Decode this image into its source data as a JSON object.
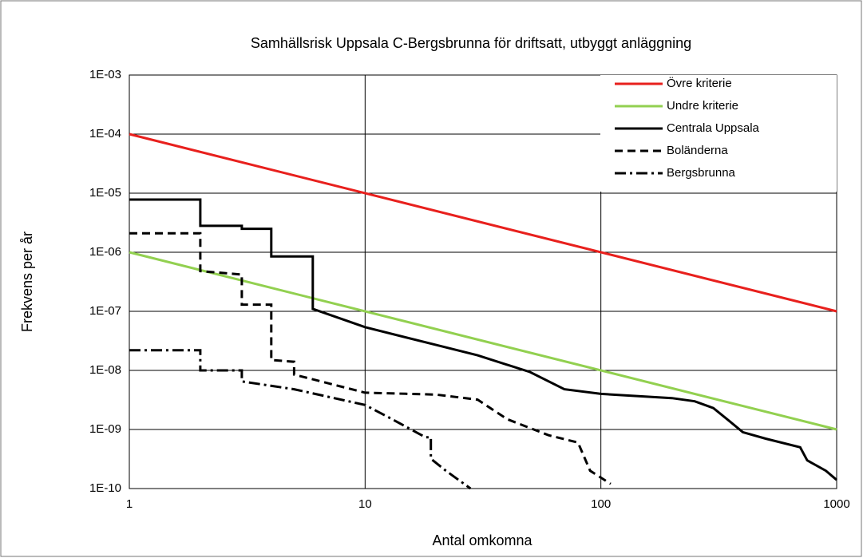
{
  "chart_data": {
    "type": "line",
    "title": "Samhällsrisk Uppsala C-Bergsbrunna för driftsatt, utbyggt anläggning",
    "x_label": "Antal omkomna",
    "y_label": "Frekvens per år",
    "xlog": true,
    "ylog": true,
    "grid": true,
    "legend": "upper right",
    "xlim": [
      1,
      1000
    ],
    "xticks": [
      1,
      10,
      100,
      1000
    ],
    "ylim": [
      1e-10,
      0.001
    ],
    "yticks": [
      {
        "value": 1e-10,
        "label": "1E-10"
      },
      {
        "value": 1e-09,
        "label": "1E-09"
      },
      {
        "value": 1e-08,
        "label": "1E-08"
      },
      {
        "value": 1e-07,
        "label": "1E-07"
      },
      {
        "value": 1e-06,
        "label": "1E-06"
      },
      {
        "value": 1e-05,
        "label": "1E-05"
      },
      {
        "value": 0.0001,
        "label": "1E-04"
      },
      {
        "value": 0.001,
        "label": "1E-03"
      }
    ],
    "series": [
      {
        "name": "Övre kriterie",
        "color": "#e8201d",
        "dash": "solid",
        "x": [
          1,
          1000
        ],
        "values": [
          0.0001,
          1e-07
        ]
      },
      {
        "name": "Undre kriterie",
        "color": "#92d050",
        "dash": "solid",
        "x": [
          1,
          1000
        ],
        "values": [
          1e-06,
          1e-09
        ]
      },
      {
        "name": "Centrala Uppsala",
        "color": "#000000",
        "dash": "solid",
        "x": [
          1,
          2,
          2,
          3,
          3,
          4,
          4,
          6,
          6,
          10,
          20,
          30,
          50,
          70,
          100,
          200,
          250,
          300,
          350,
          400,
          500,
          700,
          750,
          900,
          1000
        ],
        "values": [
          7.8e-06,
          7.8e-06,
          2.8e-06,
          2.8e-06,
          2.5e-06,
          2.5e-06,
          8.5e-07,
          8.5e-07,
          1.1e-07,
          5.4e-08,
          2.7e-08,
          1.8e-08,
          9.4e-09,
          4.8e-09,
          4e-09,
          3.4e-09,
          3e-09,
          2.3e-09,
          1.4e-09,
          9e-10,
          7e-10,
          5e-10,
          3e-10,
          2e-10,
          1.4e-10
        ]
      },
      {
        "name": "Boländerna",
        "color": "#000000",
        "dash": "dashed",
        "x": [
          1,
          2,
          2,
          3,
          3,
          4,
          4,
          5,
          5,
          10,
          20,
          30,
          40,
          60,
          80,
          90,
          110
        ],
        "values": [
          2.1e-06,
          2.1e-06,
          4.8e-07,
          4.2e-07,
          1.3e-07,
          1.3e-07,
          1.5e-08,
          1.4e-08,
          8.5e-09,
          4.2e-09,
          3.9e-09,
          3.2e-09,
          1.5e-09,
          8e-10,
          6e-10,
          2e-10,
          1.2e-10
        ]
      },
      {
        "name": "Bergsbrunna",
        "color": "#000000",
        "dash": "dashdot",
        "x": [
          1,
          2,
          2,
          3,
          3,
          5,
          10,
          13,
          18,
          19,
          19,
          22,
          28
        ],
        "values": [
          2.2e-08,
          2.2e-08,
          1e-08,
          1e-08,
          6.5e-09,
          4.8e-09,
          2.6e-09,
          1.5e-09,
          7.4e-10,
          7.4e-10,
          3.2e-10,
          2e-10,
          1e-10
        ]
      }
    ]
  }
}
